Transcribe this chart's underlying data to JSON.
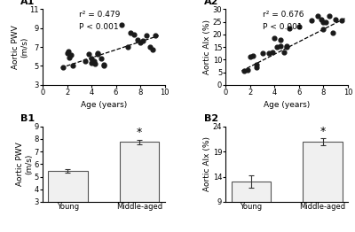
{
  "A1": {
    "label": "A1",
    "xlabel": "Age (years)",
    "ylabel": "Aortic PWV\n(m/s)",
    "r2": "r² = 0.479",
    "pval": "P < 0.001",
    "xlim": [
      0,
      10
    ],
    "ylim": [
      3,
      11
    ],
    "xticks": [
      0,
      2,
      4,
      6,
      8,
      10
    ],
    "yticks": [
      3,
      5,
      7,
      9,
      11
    ],
    "scatter_x": [
      1.7,
      2.0,
      2.1,
      2.2,
      2.3,
      2.5,
      3.5,
      3.8,
      4.0,
      4.0,
      4.2,
      4.3,
      4.5,
      4.5,
      4.8,
      5.0,
      5.0,
      6.5,
      7.0,
      7.2,
      7.5,
      7.8,
      8.0,
      8.2,
      8.5,
      8.8,
      9.0,
      9.2
    ],
    "scatter_y": [
      4.9,
      6.4,
      6.5,
      5.9,
      6.2,
      5.0,
      5.5,
      6.3,
      5.3,
      5.8,
      5.5,
      5.2,
      6.4,
      6.3,
      5.8,
      5.0,
      5.1,
      9.4,
      7.0,
      8.5,
      8.3,
      7.8,
      7.5,
      7.7,
      8.2,
      7.0,
      6.7,
      8.2
    ],
    "trendline_x": [
      1.5,
      9.5
    ],
    "trendline_y": [
      4.8,
      8.2
    ]
  },
  "A2": {
    "label": "A2",
    "xlabel": "Age (years)",
    "ylabel": "Aortic AIx (%)",
    "r2": "r² = 0.676",
    "pval": "P < 0.001",
    "xlim": [
      0,
      10
    ],
    "ylim": [
      0,
      30
    ],
    "xticks": [
      0,
      2,
      4,
      6,
      8,
      10
    ],
    "yticks": [
      0,
      5,
      10,
      15,
      20,
      25,
      30
    ],
    "scatter_x": [
      1.5,
      1.8,
      2.0,
      2.2,
      2.5,
      2.5,
      3.0,
      3.5,
      3.8,
      4.0,
      4.2,
      4.5,
      4.5,
      4.8,
      5.0,
      5.0,
      5.2,
      6.0,
      7.0,
      7.5,
      7.8,
      8.0,
      8.0,
      8.2,
      8.5,
      8.8,
      9.0,
      9.5
    ],
    "scatter_y": [
      5.5,
      6.0,
      11.0,
      11.5,
      8.0,
      7.0,
      12.5,
      12.5,
      13.0,
      18.5,
      15.0,
      15.5,
      18.0,
      13.0,
      15.0,
      15.5,
      22.5,
      23.0,
      25.5,
      27.5,
      26.0,
      22.0,
      25.0,
      25.0,
      27.5,
      20.5,
      26.0,
      25.5
    ],
    "trendline_x": [
      1.3,
      9.8
    ],
    "trendline_y": [
      5.5,
      26.5
    ]
  },
  "B1": {
    "label": "B1",
    "ylabel": "Aortic PWV\n(m/s)",
    "categories": [
      "Young",
      "Middle-aged"
    ],
    "values": [
      5.45,
      7.75
    ],
    "errors": [
      0.12,
      0.18
    ],
    "ylim": [
      3,
      9
    ],
    "yticks": [
      3,
      4,
      5,
      6,
      7,
      8,
      9
    ],
    "star_y": 8.05,
    "bar_color": "#f0f0f0",
    "bar_edge": "#555555"
  },
  "B2": {
    "label": "B2",
    "ylabel": "Aortic AIx (%)",
    "categories": [
      "Young",
      "Middle-aged"
    ],
    "values": [
      13.0,
      21.0
    ],
    "errors": [
      1.2,
      0.7
    ],
    "ylim": [
      9,
      24
    ],
    "yticks": [
      9,
      14,
      19,
      24
    ],
    "star_y": 21.85,
    "bar_color": "#f0f0f0",
    "bar_edge": "#555555"
  },
  "scatter_color": "#1a1a1a",
  "scatter_size": 12,
  "background_color": "#ffffff",
  "label_fontsize": 6.5,
  "tick_fontsize": 6,
  "annotation_fontsize": 6.5,
  "panel_label_fontsize": 8
}
